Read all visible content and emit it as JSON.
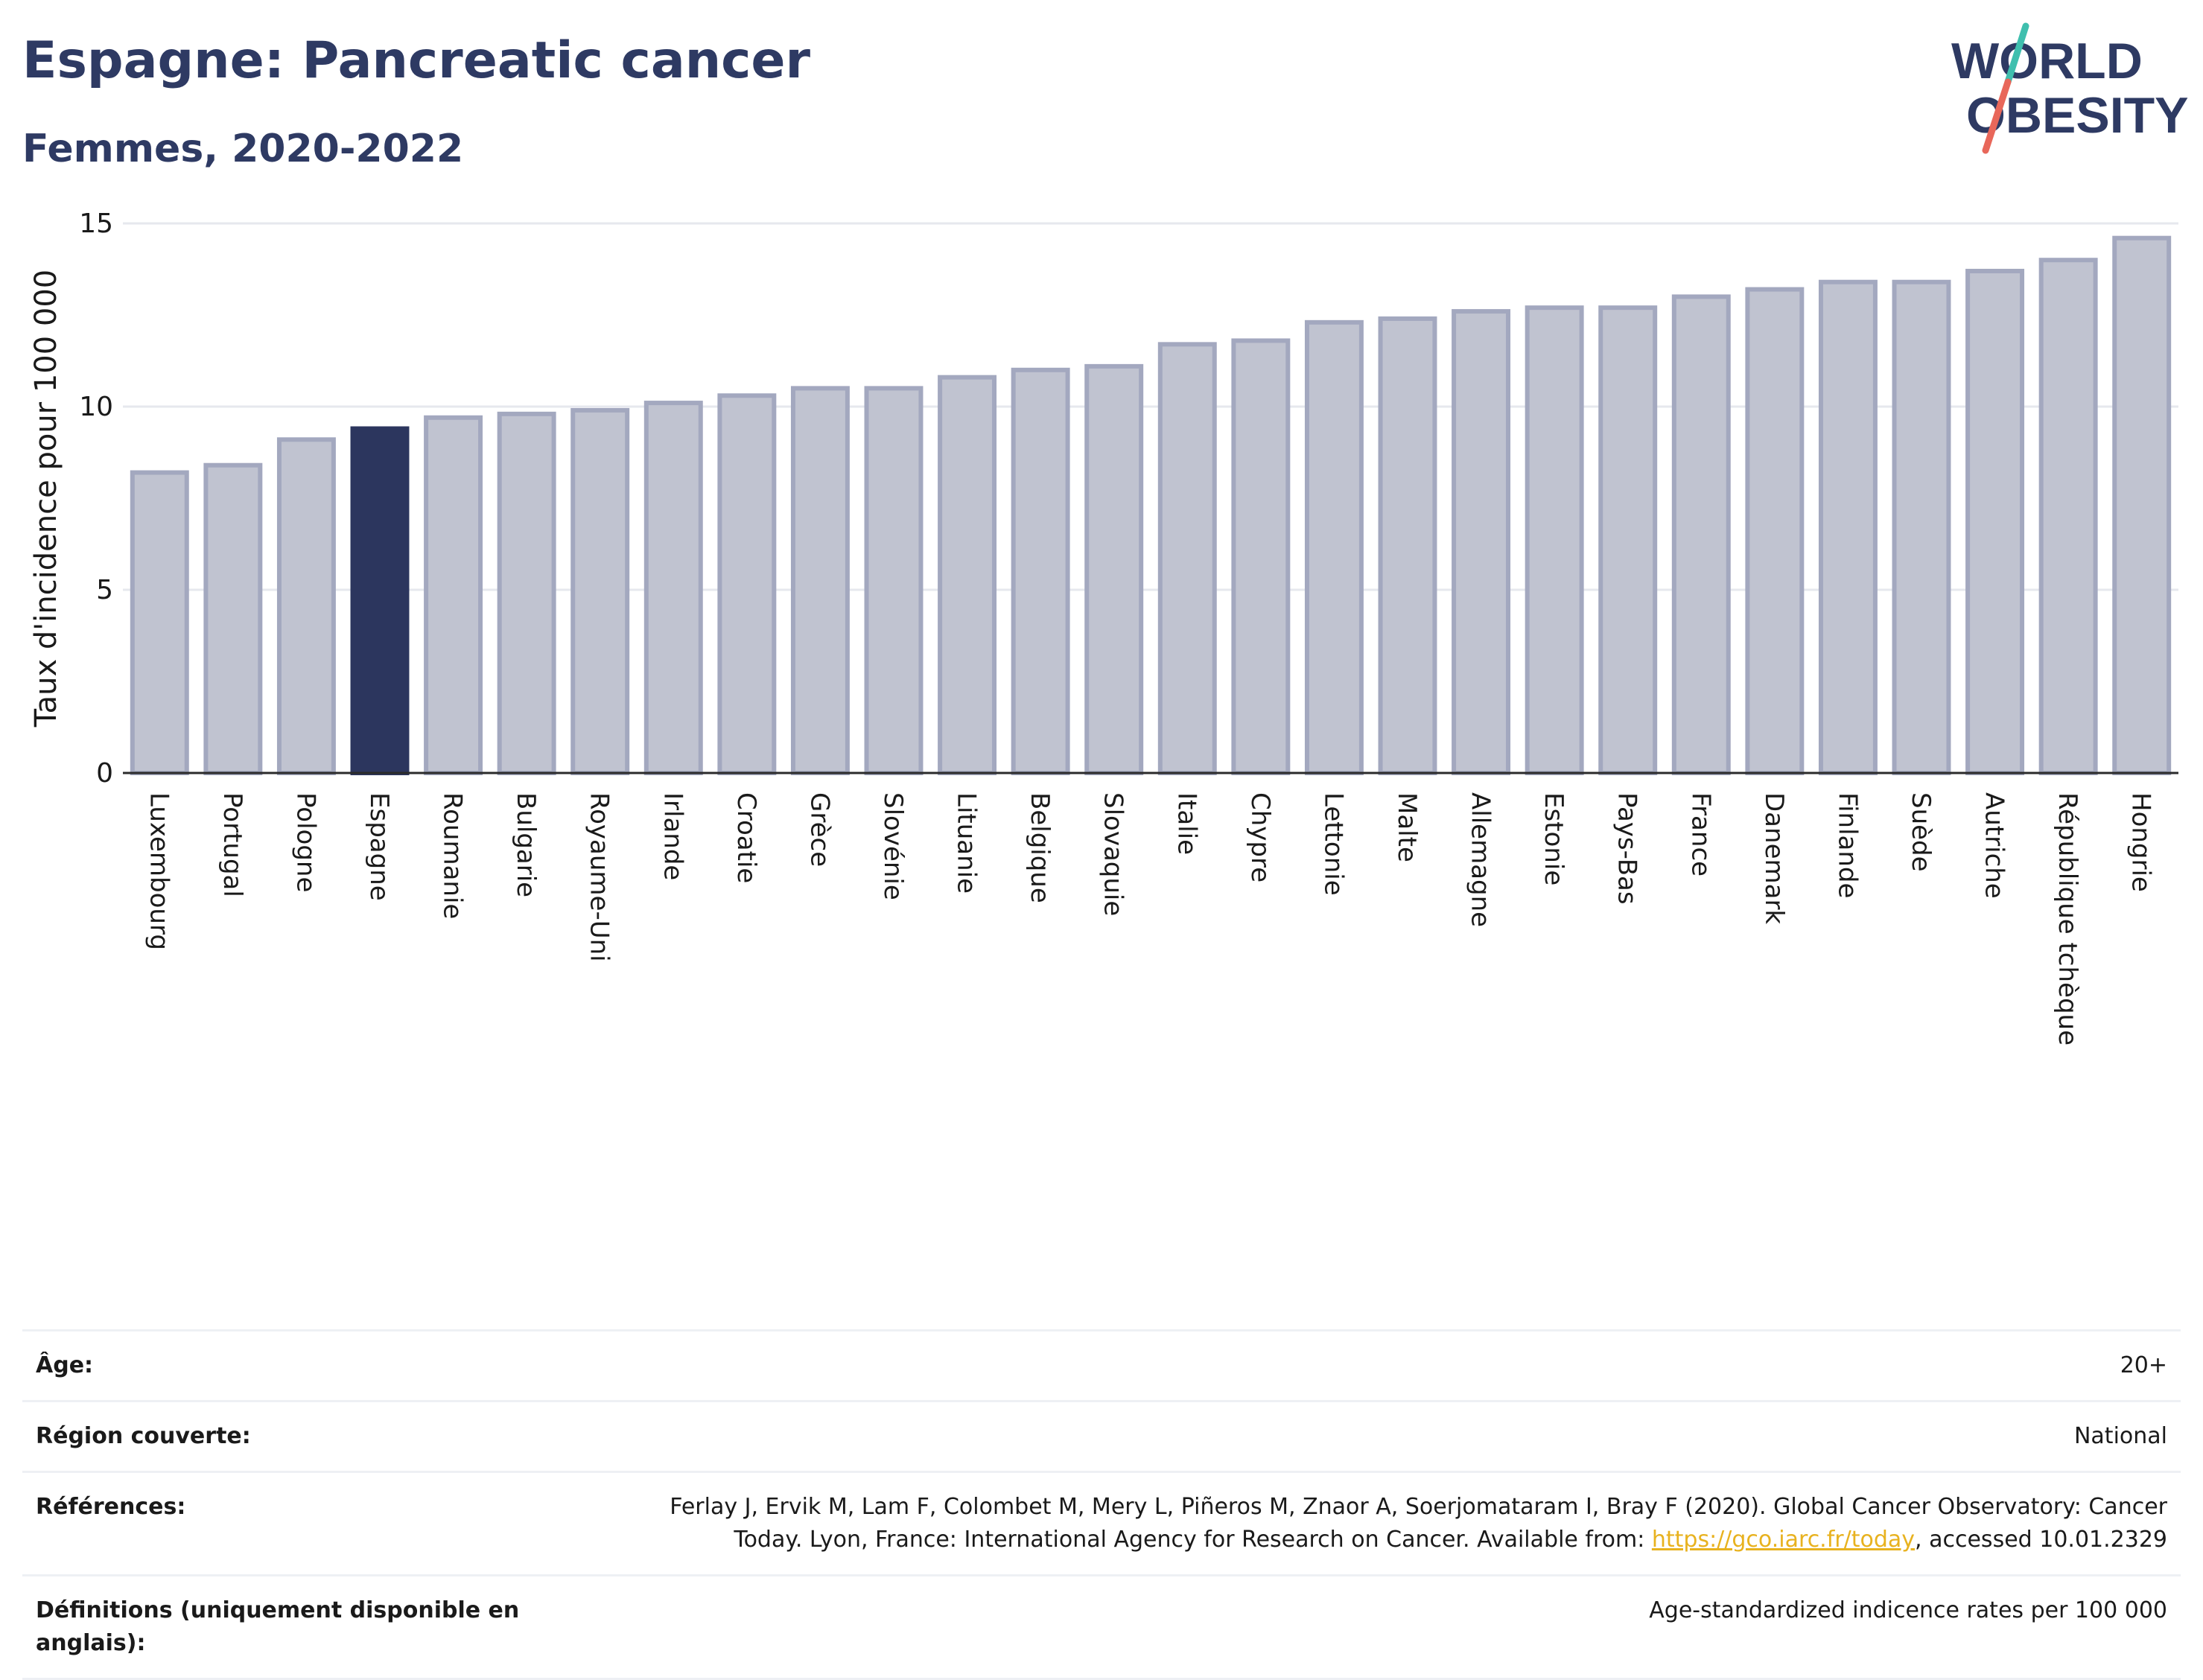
{
  "header": {
    "title": "Espagne: Pancreatic cancer",
    "subtitle": "Femmes, 2020-2022",
    "logo_line1": "WORLD",
    "logo_line2": "OBESITY"
  },
  "chart_data": {
    "type": "bar",
    "ylabel": "Taux d'incidence pour 100 000",
    "xlabel": "",
    "ylim": [
      0,
      15
    ],
    "yticks": [
      0,
      5,
      10,
      15
    ],
    "grid": true,
    "highlight": "Espagne",
    "categories": [
      "Luxembourg",
      "Portugal",
      "Pologne",
      "Espagne",
      "Roumanie",
      "Bulgarie",
      "Royaume-Uni",
      "Irlande",
      "Croatie",
      "Grèce",
      "Slovénie",
      "Lituanie",
      "Belgique",
      "Slovaquie",
      "Italie",
      "Chypre",
      "Lettonie",
      "Malte",
      "Allemagne",
      "Estonie",
      "Pays-Bas",
      "France",
      "Danemark",
      "Finlande",
      "Suède",
      "Autriche",
      "République tchèque",
      "Hongrie"
    ],
    "values": [
      8.2,
      8.4,
      9.1,
      9.4,
      9.7,
      9.8,
      9.9,
      10.1,
      10.3,
      10.5,
      10.5,
      10.8,
      11.0,
      11.1,
      11.7,
      11.8,
      12.3,
      12.4,
      12.6,
      12.7,
      12.7,
      13.0,
      13.2,
      13.4,
      13.4,
      13.7,
      14.0,
      14.6
    ]
  },
  "colors": {
    "title": "#2e3a63",
    "bar": "#c0c3d0",
    "bar_stroke": "#a3a8bf",
    "highlight_bar": "#2c365e",
    "grid": "#e6e8ee",
    "axis": "#2b2b2b",
    "logo_teal": "#3fbfae",
    "logo_red": "#e8675a",
    "link": "#e8b21f"
  },
  "meta": {
    "age_label": "Âge:",
    "age_value": "20+",
    "region_label": "Région couverte:",
    "region_value": "National",
    "refs_label": "Références:",
    "refs_text": "Ferlay J, Ervik M, Lam F, Colombet M, Mery L, Piñeros M, Znaor A, Soerjomataram I, Bray F (2020). Global Cancer Observatory: Cancer Today. Lyon, France: International Agency for Research on Cancer. Available from: ",
    "refs_link": "https://gco.iarc.fr/today",
    "refs_suffix": ", accessed 10.01.2329",
    "defs_label": "Définitions (uniquement disponible en anglais):",
    "defs_value": "Age-standardized indicence rates per 100 000"
  }
}
